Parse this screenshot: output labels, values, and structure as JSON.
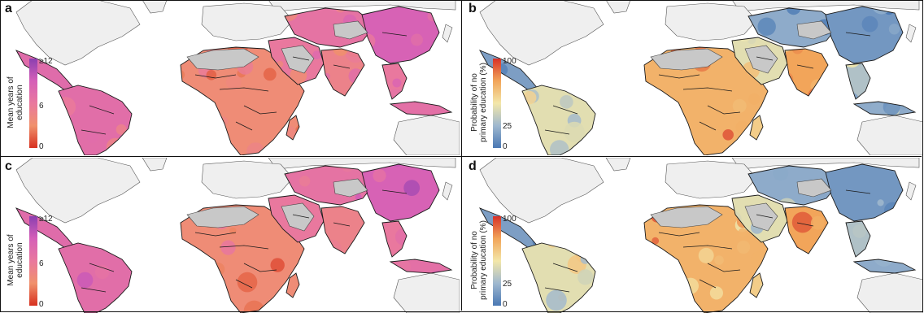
{
  "panels": [
    {
      "letter": "a",
      "variable": "years",
      "legend_title_line1": "Mean years of",
      "legend_title_line2": "education",
      "ticks": {
        "top": "≥12",
        "mid": "6",
        "bottom": "0"
      }
    },
    {
      "letter": "b",
      "variable": "probability",
      "legend_title_line1": "Probability of no",
      "legend_title_line2": "primary education (%)",
      "ticks": {
        "top": "100",
        "mid": "25",
        "bottom": "0"
      }
    },
    {
      "letter": "c",
      "variable": "years",
      "legend_title_line1": "Mean years of",
      "legend_title_line2": "education",
      "ticks": {
        "top": "≥12",
        "mid": "6",
        "bottom": "0"
      }
    },
    {
      "letter": "d",
      "variable": "probability",
      "legend_title_line1": "Probability of no",
      "legend_title_line2": "primary education (%)",
      "ticks": {
        "top": "100",
        "mid": "25",
        "bottom": "0"
      }
    }
  ],
  "colors": {
    "years_scale": [
      "#d7301f",
      "#f0916c",
      "#e9789e",
      "#d55fb8",
      "#8b3fb0"
    ],
    "probability_scale": [
      "#4a78b4",
      "#9fb8cf",
      "#f3e7a9",
      "#f2a55a",
      "#d73027"
    ],
    "no_data": "#c8c8c8",
    "non_study_land": "#efefef",
    "ocean": "#ffffff",
    "border": "#1a1a1a"
  }
}
